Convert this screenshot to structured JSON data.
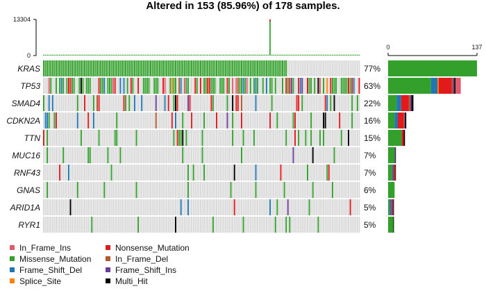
{
  "title": "Altered in 153 (85.96%) of 178 samples.",
  "colors": {
    "In_Frame_Ins": "#e05a6b",
    "Missense_Mutation": "#33a02c",
    "Frame_Shift_Del": "#1f78b4",
    "Splice_Site": "#ff7f00",
    "Nonsense_Mutation": "#e31a1c",
    "In_Frame_Del": "#b15928",
    "Frame_Shift_Ins": "#6a3d9a",
    "Multi_Hit": "#000000",
    "none": "#d9d9d9"
  },
  "chart_data": {
    "type": "oncoplot",
    "title": "Altered in 153 (85.96%) of 178 samples.",
    "n_samples": 178,
    "top_axis": {
      "min": 0,
      "max": 13304,
      "ticks": [
        "13304",
        "0"
      ],
      "peak_sample_index": 127
    },
    "right_axis": {
      "min": 0,
      "max": 137,
      "ticks": [
        "0",
        "137"
      ]
    },
    "legend": [
      "In_Frame_Ins",
      "Nonsense_Mutation",
      "Missense_Mutation",
      "In_Frame_Del",
      "Frame_Shift_Del",
      "Frame_Shift_Ins",
      "Splice_Site",
      "Multi_Hit"
    ],
    "genes": [
      {
        "name": "KRAS",
        "pct": "77%",
        "count": 137,
        "counts": {
          "Missense_Mutation": 137
        }
      },
      {
        "name": "TP53",
        "pct": "63%",
        "count": 112,
        "counts": {
          "Missense_Mutation": 66,
          "Frame_Shift_Del": 10,
          "Splice_Site": 2,
          "Nonsense_Mutation": 20,
          "In_Frame_Del": 2,
          "Frame_Shift_Ins": 2,
          "Multi_Hit": 2,
          "In_Frame_Ins": 8
        }
      },
      {
        "name": "SMAD4",
        "pct": "22%",
        "count": 39,
        "counts": {
          "Missense_Mutation": 13,
          "Frame_Shift_Del": 7,
          "Nonsense_Mutation": 12,
          "In_Frame_Del": 2,
          "Frame_Shift_Ins": 2,
          "Multi_Hit": 3
        }
      },
      {
        "name": "CDKN2A",
        "pct": "16%",
        "count": 28,
        "counts": {
          "Missense_Mutation": 10,
          "Frame_Shift_Del": 5,
          "Nonsense_Mutation": 9,
          "In_Frame_Del": 1,
          "Frame_Shift_Ins": 1,
          "Multi_Hit": 2
        }
      },
      {
        "name": "TTN",
        "pct": "15%",
        "count": 26,
        "counts": {
          "Missense_Mutation": 21,
          "Nonsense_Mutation": 3,
          "Multi_Hit": 2
        }
      },
      {
        "name": "MUC16",
        "pct": "7%",
        "count": 12,
        "counts": {
          "Missense_Mutation": 10,
          "Frame_Shift_Ins": 1,
          "Multi_Hit": 1
        }
      },
      {
        "name": "RNF43",
        "pct": "7%",
        "count": 12,
        "counts": {
          "Missense_Mutation": 6,
          "Frame_Shift_Del": 2,
          "Nonsense_Mutation": 3,
          "Multi_Hit": 1
        }
      },
      {
        "name": "GNAS",
        "pct": "6%",
        "count": 10,
        "counts": {
          "Missense_Mutation": 10
        }
      },
      {
        "name": "ARID1A",
        "pct": "5%",
        "count": 9,
        "counts": {
          "Missense_Mutation": 2,
          "Frame_Shift_Del": 3,
          "Nonsense_Mutation": 2,
          "Frame_Shift_Ins": 1,
          "Multi_Hit": 1
        }
      },
      {
        "name": "RYR1",
        "pct": "5%",
        "count": 9,
        "counts": {
          "Missense_Mutation": 8,
          "Multi_Hit": 1
        }
      }
    ]
  }
}
